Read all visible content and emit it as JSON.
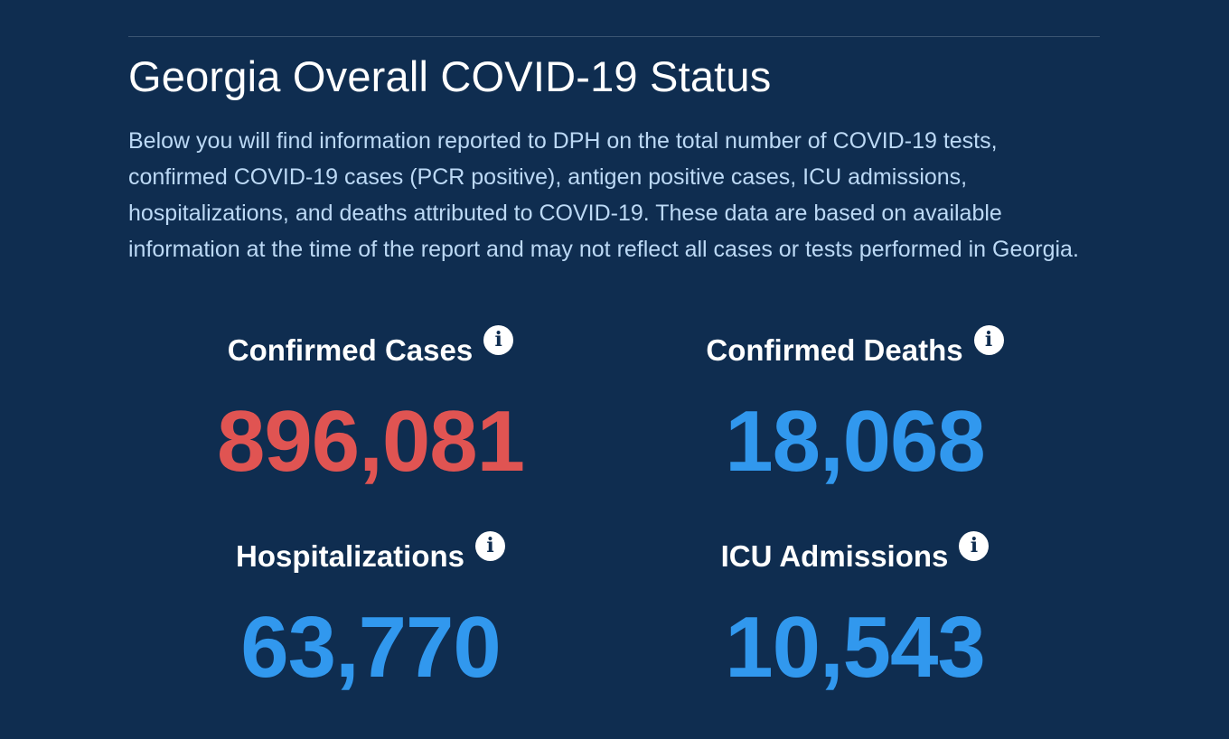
{
  "header": {
    "title": "Georgia Overall COVID-19 Status",
    "description": "Below you will find information reported to DPH on the total number of COVID-19 tests, confirmed COVID-19 cases (PCR positive), antigen positive cases, ICU admissions, hospitalizations, and deaths attributed to COVID-19. These data are based on available information at the time of the report and may not reflect all cases or tests performed in Georgia."
  },
  "stats": {
    "confirmed_cases": {
      "label": "Confirmed Cases",
      "value": "896,081",
      "icon": "info-icon"
    },
    "confirmed_deaths": {
      "label": "Confirmed Deaths",
      "value": "18,068",
      "icon": "info-icon"
    },
    "hospitalizations": {
      "label": "Hospitalizations",
      "value": "63,770",
      "icon": "info-icon"
    },
    "icu_admissions": {
      "label": "ICU Admissions",
      "value": "10,543",
      "icon": "info-icon"
    }
  },
  "colors": {
    "background": "#0f2d50",
    "cases_red": "#e05452",
    "stat_blue": "#3198ee",
    "description_text": "#bcd9f5"
  }
}
